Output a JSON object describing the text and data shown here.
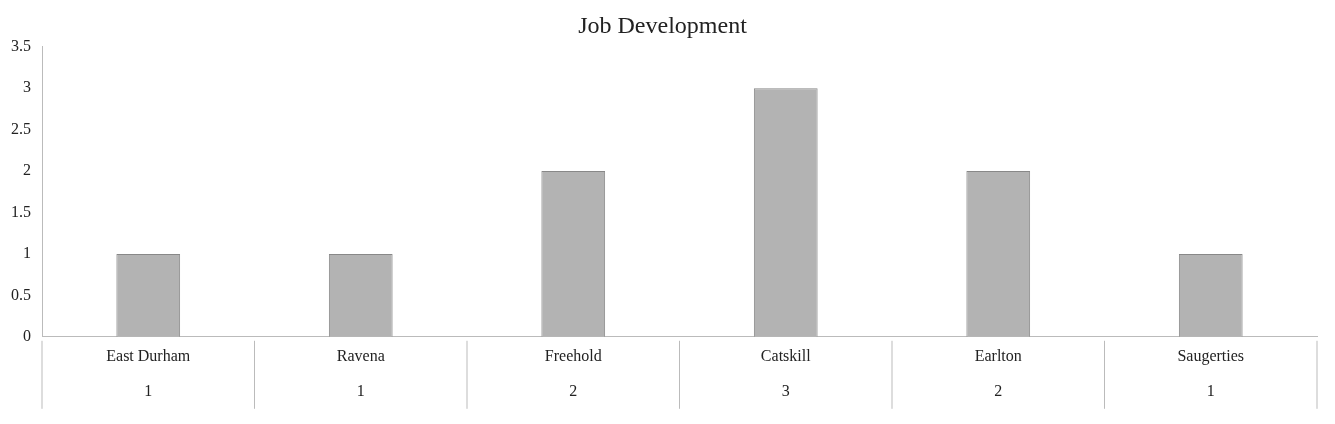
{
  "chart_data": {
    "type": "bar",
    "title": "Job Development",
    "categories": [
      "East Durham",
      "Ravena",
      "Freehold",
      "Catskill",
      "Earlton",
      "Saugerties"
    ],
    "values": [
      1,
      1,
      2,
      3,
      2,
      1
    ],
    "color": "#b3b3b3",
    "ylim": [
      0,
      3.5
    ],
    "yticks": [
      0,
      0.5,
      1,
      1.5,
      2,
      2.5,
      3,
      3.5
    ],
    "grid": false,
    "legend": false,
    "data_labels": true
  }
}
